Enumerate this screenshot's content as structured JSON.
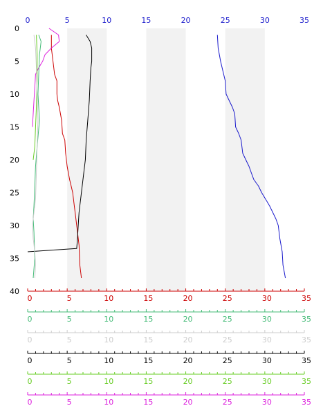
{
  "chart_data": {
    "type": "line",
    "title": "",
    "orientation": "profile",
    "grid": "alternating vertical bands",
    "band_fill": "#f2f2f2",
    "y_axis": {
      "label": "",
      "range": [
        0,
        40
      ],
      "inverted": true,
      "ticks": [
        "0",
        "5",
        "10",
        "15",
        "20",
        "25",
        "30",
        "35",
        "40"
      ],
      "color": "#000000"
    },
    "x_axes": [
      {
        "position": "top",
        "color": "#1a1acc",
        "range": [
          0,
          35
        ],
        "ticks": [
          "0",
          "5",
          "10",
          "15",
          "20",
          "25",
          "30",
          "35"
        ]
      },
      {
        "position": "bottom-1",
        "color": "#cc0000",
        "range": [
          0,
          35
        ],
        "ticks": [
          "0",
          "5",
          "10",
          "15",
          "20",
          "25",
          "30",
          "35"
        ]
      },
      {
        "position": "bottom-2",
        "color": "#44bb77",
        "range": [
          0,
          35
        ],
        "ticks": [
          "0",
          "5",
          "10",
          "15",
          "20",
          "25",
          "30",
          "35"
        ]
      },
      {
        "position": "bottom-3",
        "color": "#cccccc",
        "range": [
          0,
          35
        ],
        "ticks": [
          "0",
          "5",
          "10",
          "15",
          "20",
          "25",
          "30",
          "35"
        ]
      },
      {
        "position": "bottom-4",
        "color": "#000000",
        "range": [
          0,
          35
        ],
        "ticks": [
          "0",
          "5",
          "10",
          "15",
          "20",
          "25",
          "30",
          "35"
        ]
      },
      {
        "position": "bottom-5",
        "color": "#66cc22",
        "range": [
          0,
          35
        ],
        "ticks": [
          "0",
          "5",
          "10",
          "15",
          "20",
          "25",
          "30",
          "35"
        ]
      },
      {
        "position": "bottom-6",
        "color": "#dd22dd",
        "range": [
          0,
          35
        ],
        "ticks": [
          "0",
          "5",
          "10",
          "15",
          "20",
          "25",
          "30",
          "35"
        ]
      }
    ],
    "series": [
      {
        "color": "#1a1acc",
        "points": [
          [
            24.0,
            1
          ],
          [
            24.1,
            3
          ],
          [
            24.4,
            5
          ],
          [
            24.8,
            7
          ],
          [
            25.0,
            8
          ],
          [
            25.1,
            10
          ],
          [
            25.5,
            11
          ],
          [
            25.9,
            12
          ],
          [
            26.2,
            13
          ],
          [
            26.3,
            15
          ],
          [
            26.7,
            16
          ],
          [
            27.0,
            17
          ],
          [
            27.2,
            19
          ],
          [
            27.6,
            20
          ],
          [
            28.0,
            21
          ],
          [
            28.3,
            22
          ],
          [
            28.6,
            23
          ],
          [
            29.2,
            24
          ],
          [
            29.6,
            25
          ],
          [
            30.1,
            26
          ],
          [
            30.6,
            27
          ],
          [
            31.0,
            28
          ],
          [
            31.4,
            29
          ],
          [
            31.7,
            30
          ],
          [
            31.9,
            32
          ],
          [
            32.2,
            34
          ],
          [
            32.3,
            36
          ],
          [
            32.6,
            38
          ]
        ]
      },
      {
        "color": "#cc0000",
        "points": [
          [
            3.0,
            1
          ],
          [
            3.0,
            3
          ],
          [
            3.2,
            5
          ],
          [
            3.4,
            7
          ],
          [
            3.7,
            8
          ],
          [
            3.7,
            10
          ],
          [
            3.8,
            11
          ],
          [
            4.0,
            12
          ],
          [
            4.3,
            14
          ],
          [
            4.4,
            16
          ],
          [
            4.7,
            17
          ],
          [
            4.8,
            19
          ],
          [
            5.0,
            21
          ],
          [
            5.3,
            23
          ],
          [
            5.5,
            24
          ],
          [
            5.7,
            25
          ],
          [
            5.9,
            27
          ],
          [
            6.0,
            28
          ],
          [
            6.2,
            30
          ],
          [
            6.5,
            33
          ],
          [
            6.6,
            36
          ],
          [
            6.8,
            38
          ]
        ]
      },
      {
        "color": "#000000",
        "points": [
          [
            7.4,
            1
          ],
          [
            7.9,
            2
          ],
          [
            8.1,
            3
          ],
          [
            8.1,
            5
          ],
          [
            8.0,
            6
          ],
          [
            7.9,
            8
          ],
          [
            7.8,
            11
          ],
          [
            7.6,
            14
          ],
          [
            7.4,
            17
          ],
          [
            7.3,
            20
          ],
          [
            7.1,
            22
          ],
          [
            6.8,
            25
          ],
          [
            6.5,
            28
          ],
          [
            6.4,
            30
          ],
          [
            6.3,
            32
          ],
          [
            6.2,
            33.5
          ],
          [
            0.0,
            34
          ]
        ]
      },
      {
        "color": "#dd22dd",
        "points": [
          [
            2.7,
            0
          ],
          [
            3.9,
            1
          ],
          [
            4.0,
            2
          ],
          [
            3.0,
            3
          ],
          [
            2.2,
            4
          ],
          [
            1.9,
            5
          ],
          [
            1.4,
            6
          ],
          [
            1.0,
            7
          ],
          [
            0.9,
            9
          ],
          [
            0.8,
            11
          ],
          [
            0.7,
            13
          ],
          [
            0.6,
            15
          ]
        ]
      },
      {
        "color": "#66cc22",
        "points": [
          [
            1.1,
            1
          ],
          [
            1.2,
            4
          ],
          [
            1.2,
            8
          ],
          [
            1.1,
            12
          ],
          [
            1.0,
            15
          ],
          [
            0.9,
            18
          ],
          [
            0.7,
            20
          ]
        ]
      },
      {
        "color": "#44bb77",
        "points": [
          [
            1.4,
            1
          ],
          [
            1.7,
            2
          ],
          [
            1.5,
            4
          ],
          [
            1.4,
            7
          ],
          [
            1.3,
            10
          ],
          [
            1.5,
            14
          ],
          [
            1.2,
            18
          ],
          [
            1.0,
            21
          ],
          [
            0.9,
            24
          ],
          [
            0.8,
            27
          ],
          [
            0.7,
            29
          ],
          [
            0.8,
            31
          ],
          [
            0.9,
            35
          ],
          [
            0.7,
            38
          ]
        ]
      },
      {
        "color": "#cccccc",
        "points": [
          [
            0.8,
            1
          ],
          [
            1.0,
            3
          ],
          [
            1.1,
            6
          ],
          [
            1.2,
            10
          ],
          [
            1.3,
            14
          ],
          [
            1.2,
            18
          ],
          [
            1.1,
            22
          ],
          [
            1.0,
            26
          ],
          [
            0.8,
            28
          ],
          [
            0.6,
            30
          ],
          [
            0.7,
            32
          ],
          [
            0.9,
            34
          ],
          [
            1.0,
            36
          ],
          [
            0.9,
            38
          ]
        ]
      }
    ]
  }
}
